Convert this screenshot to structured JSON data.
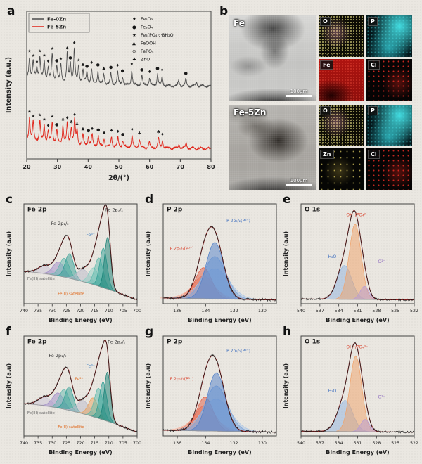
{
  "figure": {
    "bg": "#eae7e1"
  },
  "panels": {
    "a": {
      "label": "a"
    },
    "b": {
      "label": "b"
    },
    "c": {
      "label": "c"
    },
    "d": {
      "label": "d"
    },
    "e": {
      "label": "e"
    },
    "f": {
      "label": "f"
    },
    "g": {
      "label": "g"
    },
    "h": {
      "label": "h"
    }
  },
  "panel_b": {
    "rows": [
      {
        "sem_label": "Fe",
        "scale_label": "100μm",
        "maps": [
          {
            "key": "o",
            "label": "O"
          },
          {
            "key": "p",
            "label": "P"
          },
          {
            "key": "fe",
            "label": "Fe"
          },
          {
            "key": "cl",
            "label": "Cl"
          }
        ]
      },
      {
        "sem_label": "Fe-5Zn",
        "scale_label": "100μm",
        "maps": [
          {
            "key": "o",
            "label": "O"
          },
          {
            "key": "p",
            "label": "P"
          },
          {
            "key": "zn",
            "label": "Zn"
          },
          {
            "key": "cl",
            "label": "Cl"
          }
        ]
      }
    ]
  },
  "chart_data": {
    "a": {
      "type": "line",
      "xlabel": "2θ/(°)",
      "ylabel": "Intensity (a.u.)",
      "xlim": [
        20,
        80
      ],
      "xticks": [
        20,
        30,
        40,
        50,
        60,
        70,
        80
      ],
      "legend": [
        {
          "name": "Fe-0Zn",
          "color": "#4d4d4d"
        },
        {
          "name": "Fe-5Zn",
          "color": "#e02419"
        }
      ],
      "phases": [
        {
          "symbol": "♦",
          "name": "Fe₂O₃"
        },
        {
          "symbol": "●",
          "name": "Fe₃O₄"
        },
        {
          "symbol": "★",
          "name": "Fe₃(PO₄)₂·8H₂O"
        },
        {
          "symbol": "▲",
          "name": "FeOOH"
        },
        {
          "symbol": "⊕",
          "name": "FePO₄"
        },
        {
          "symbol": "♣",
          "name": "ZnO"
        }
      ],
      "series": [
        {
          "name": "Fe-0Zn",
          "color": "#4d4d4d",
          "offset": 0.5,
          "peaks": [
            [
              20.9,
              0.55,
              "★"
            ],
            [
              22.1,
              0.45,
              "★"
            ],
            [
              23.3,
              0.3,
              "♦"
            ],
            [
              24.3,
              0.6,
              "★"
            ],
            [
              25.7,
              0.5,
              "★"
            ],
            [
              27.0,
              0.35,
              "♦"
            ],
            [
              28.3,
              0.7,
              "★"
            ],
            [
              29.8,
              0.4,
              "●"
            ],
            [
              31.1,
              0.45,
              "★"
            ],
            [
              33.2,
              0.75,
              "♦"
            ],
            [
              34.2,
              0.5,
              "●"
            ],
            [
              35.5,
              0.9,
              "♦"
            ],
            [
              36.9,
              0.45,
              "★"
            ],
            [
              38.3,
              0.35,
              "▲"
            ],
            [
              39.6,
              0.3,
              "●"
            ],
            [
              41.1,
              0.4,
              "♦"
            ],
            [
              43.2,
              0.35,
              "●"
            ],
            [
              45.1,
              0.28,
              "▲"
            ],
            [
              47.4,
              0.3,
              "●"
            ],
            [
              49.6,
              0.35,
              "♦"
            ],
            [
              51.2,
              0.22,
              "●"
            ],
            [
              54.2,
              0.4,
              "♦"
            ],
            [
              57.5,
              0.26,
              "●"
            ],
            [
              60.0,
              0.2,
              "♦"
            ],
            [
              62.6,
              0.3,
              "●"
            ],
            [
              64.1,
              0.25,
              "♦"
            ],
            [
              69.5,
              0.15,
              null
            ],
            [
              71.8,
              0.18,
              "●"
            ],
            [
              75.3,
              0.12,
              null
            ]
          ]
        },
        {
          "name": "Fe-5Zn",
          "color": "#e02419",
          "offset": 0.07,
          "peaks": [
            [
              20.9,
              0.6,
              "★"
            ],
            [
              22.1,
              0.5,
              "★"
            ],
            [
              24.3,
              0.55,
              "★"
            ],
            [
              25.7,
              0.45,
              "★"
            ],
            [
              27.0,
              0.3,
              "♦"
            ],
            [
              28.3,
              0.55,
              "★"
            ],
            [
              29.8,
              0.35,
              "●"
            ],
            [
              31.8,
              0.5,
              "♣"
            ],
            [
              33.2,
              0.55,
              "♦"
            ],
            [
              34.5,
              0.45,
              "♣"
            ],
            [
              35.6,
              0.65,
              "♦"
            ],
            [
              36.4,
              0.4,
              "♣"
            ],
            [
              38.3,
              0.3,
              "▲"
            ],
            [
              40.1,
              0.25,
              "●"
            ],
            [
              41.3,
              0.3,
              "♦"
            ],
            [
              43.3,
              0.28,
              "●"
            ],
            [
              45.2,
              0.22,
              "▲"
            ],
            [
              47.6,
              0.28,
              "♣"
            ],
            [
              49.7,
              0.25,
              "♦"
            ],
            [
              51.3,
              0.18,
              "●"
            ],
            [
              54.3,
              0.32,
              "♦"
            ],
            [
              56.7,
              0.22,
              "♣"
            ],
            [
              59.9,
              0.16,
              null
            ],
            [
              62.9,
              0.26,
              "♣"
            ],
            [
              64.2,
              0.2,
              "♦"
            ],
            [
              69.6,
              0.12,
              null
            ],
            [
              71.9,
              0.14,
              null
            ]
          ]
        }
      ]
    },
    "c": {
      "type": "area",
      "title": "Fe 2p",
      "xlabel": "Binding Energy (eV)",
      "ylabel": "Intensity (a.u)",
      "xlim": [
        740,
        700
      ],
      "xticks": [
        740,
        735,
        730,
        725,
        720,
        715,
        710,
        705,
        700
      ],
      "baseline": {
        "left": 0.34,
        "right": 0.04,
        "curve": 1.6
      },
      "noise": 0.012,
      "envelope_color": "#8c1f1f",
      "components": [
        {
          "center": 732.6,
          "width": 2.4,
          "amp": 0.08,
          "color": "#c9c3d6"
        },
        {
          "center": 727.7,
          "width": 2.0,
          "amp": 0.15,
          "color": "#a08cc8"
        },
        {
          "center": 725.7,
          "width": 1.7,
          "amp": 0.2,
          "color": "#63b8ae"
        },
        {
          "center": 723.9,
          "width": 1.5,
          "amp": 0.26,
          "color": "#2f9e94"
        },
        {
          "center": 718.9,
          "width": 2.2,
          "amp": 0.13,
          "color": "#b9b9c9"
        },
        {
          "center": 715.3,
          "width": 1.7,
          "amp": 0.18,
          "color": "#8fd0c4"
        },
        {
          "center": 713.5,
          "width": 1.5,
          "amp": 0.3,
          "color": "#5cb9ac"
        },
        {
          "center": 711.9,
          "width": 1.3,
          "amp": 0.42,
          "color": "#2f9e94"
        },
        {
          "center": 710.4,
          "width": 1.1,
          "amp": 0.55,
          "color": "#167f74"
        }
      ],
      "annotations": [
        {
          "text": "Fe 2p",
          "fx": 0.03,
          "fy": 0.03,
          "color": "#1a1a1a",
          "size": 9,
          "bold": true
        },
        {
          "text": "Fe 2p₁/₂",
          "fx": 0.24,
          "fy": 0.17,
          "color": "#333333",
          "size": 6.5
        },
        {
          "text": "Fe 2p₃/₂",
          "fx": 0.72,
          "fy": 0.03,
          "color": "#333333",
          "size": 6.5
        },
        {
          "text": "Fe³⁺",
          "fx": 0.55,
          "fy": 0.28,
          "color": "#3f7fc1",
          "size": 6
        },
        {
          "text": "Fe(III) satellite",
          "fx": 0.03,
          "fy": 0.72,
          "color": "#6a6a6a",
          "size": 5.5
        },
        {
          "text": "Fe(II) satellite",
          "fx": 0.3,
          "fy": 0.87,
          "color": "#e06a1f",
          "size": 5.5
        }
      ]
    },
    "d": {
      "type": "area",
      "title": "P 2p",
      "xlabel": "Binding Energy (eV)",
      "ylabel": "Intensity (a.u)",
      "xlim": [
        137,
        129
      ],
      "xticks": [
        136,
        134,
        132,
        130
      ],
      "baseline": {
        "left": 0.06,
        "right": 0.04,
        "curve": 1
      },
      "noise": 0.014,
      "envelope_color": "#8c1f1f",
      "components": [
        {
          "center": 134.15,
          "width": 0.95,
          "amp": 0.16,
          "color": "#f6b4a0",
          "sum": false
        },
        {
          "center": 134.15,
          "width": 0.75,
          "amp": 0.24,
          "color": "#ee8a70",
          "sum": false
        },
        {
          "center": 134.15,
          "width": 0.58,
          "amp": 0.33,
          "color": "#e05a42",
          "sum": true
        },
        {
          "center": 133.35,
          "width": 1.0,
          "amp": 0.32,
          "color": "#aac6e8",
          "sum": false
        },
        {
          "center": 133.35,
          "width": 0.8,
          "amp": 0.45,
          "color": "#7fa6da",
          "sum": false
        },
        {
          "center": 133.35,
          "width": 0.62,
          "amp": 0.6,
          "color": "#4f7fc9",
          "sum": true
        }
      ],
      "annotations": [
        {
          "text": "P 2p",
          "fx": 0.03,
          "fy": 0.03,
          "color": "#1a1a1a",
          "size": 9,
          "bold": true
        },
        {
          "text": "P 2p₃/₂(P⁵⁺)",
          "fx": 0.56,
          "fy": 0.14,
          "color": "#3f6fbf",
          "size": 6
        },
        {
          "text": "P 2p₁/₂(P⁵⁺)",
          "fx": 0.06,
          "fy": 0.42,
          "color": "#d9432e",
          "size": 6
        }
      ]
    },
    "e": {
      "type": "area",
      "title": "O 1s",
      "xlabel": "Binding Energy (eV)",
      "ylabel": "Intensity (a.u)",
      "xlim": [
        540,
        522
      ],
      "xticks": [
        540,
        537,
        534,
        531,
        528,
        525,
        522
      ],
      "baseline": {
        "left": 0.05,
        "right": 0.04,
        "curve": 1
      },
      "noise": 0.011,
      "envelope_color": "#8c1f1f",
      "components": [
        {
          "center": 533.1,
          "width": 1.15,
          "amp": 0.36,
          "color": "#8fb3e0"
        },
        {
          "center": 531.4,
          "width": 0.95,
          "amp": 0.8,
          "color": "#f0a168"
        },
        {
          "center": 529.9,
          "width": 0.7,
          "amp": 0.14,
          "color": "#b79bd4"
        }
      ],
      "annotations": [
        {
          "text": "O 1s",
          "fx": 0.03,
          "fy": 0.03,
          "color": "#1a1a1a",
          "size": 9,
          "bold": true
        },
        {
          "text": "OH⁻/PO₄³⁻",
          "fx": 0.4,
          "fy": 0.08,
          "color": "#d9432e",
          "size": 6
        },
        {
          "text": "H₂O",
          "fx": 0.24,
          "fy": 0.5,
          "color": "#3f6fbf",
          "size": 6
        },
        {
          "text": "O²⁻",
          "fx": 0.68,
          "fy": 0.55,
          "color": "#8e6bbf",
          "size": 6
        }
      ]
    },
    "f": {
      "type": "area",
      "title": "Fe 2p",
      "xlabel": "Binding Energy (eV)",
      "ylabel": "Intensity (a.u)",
      "xlim": [
        740,
        700
      ],
      "xticks": [
        740,
        735,
        730,
        725,
        720,
        715,
        710,
        705,
        700
      ],
      "baseline": {
        "left": 0.34,
        "right": 0.04,
        "curve": 1.6
      },
      "noise": 0.012,
      "envelope_color": "#8c1f1f",
      "components": [
        {
          "center": 732.6,
          "width": 2.4,
          "amp": 0.09,
          "color": "#c9c3d6"
        },
        {
          "center": 727.9,
          "width": 2.0,
          "amp": 0.16,
          "color": "#a08cc8"
        },
        {
          "center": 725.8,
          "width": 1.7,
          "amp": 0.21,
          "color": "#63b8ae"
        },
        {
          "center": 724.0,
          "width": 1.5,
          "amp": 0.25,
          "color": "#2f9e94"
        },
        {
          "center": 719.0,
          "width": 2.2,
          "amp": 0.14,
          "color": "#b9b9c9"
        },
        {
          "center": 715.5,
          "width": 1.7,
          "amp": 0.2,
          "color": "#e8a25e"
        },
        {
          "center": 713.6,
          "width": 1.5,
          "amp": 0.32,
          "color": "#5cb9ac"
        },
        {
          "center": 712.0,
          "width": 1.3,
          "amp": 0.4,
          "color": "#2f9e94"
        },
        {
          "center": 710.5,
          "width": 1.1,
          "amp": 0.52,
          "color": "#167f74"
        }
      ],
      "annotations": [
        {
          "text": "Fe 2p",
          "fx": 0.03,
          "fy": 0.03,
          "color": "#1a1a1a",
          "size": 9,
          "bold": true
        },
        {
          "text": "Fe 2p₁/₂",
          "fx": 0.22,
          "fy": 0.17,
          "color": "#333333",
          "size": 6.5
        },
        {
          "text": "Fe 2p₃/₂",
          "fx": 0.74,
          "fy": 0.03,
          "color": "#333333",
          "size": 6.5
        },
        {
          "text": "Fe³⁺",
          "fx": 0.55,
          "fy": 0.27,
          "color": "#3f7fc1",
          "size": 6
        },
        {
          "text": "Fe²⁺",
          "fx": 0.45,
          "fy": 0.4,
          "color": "#e07b39",
          "size": 6
        },
        {
          "text": "Fe(III) satellite",
          "fx": 0.03,
          "fy": 0.74,
          "color": "#6a6a6a",
          "size": 5.5
        },
        {
          "text": "Fe(II) satellite",
          "fx": 0.3,
          "fy": 0.88,
          "color": "#e06a1f",
          "size": 5.5
        }
      ]
    },
    "g": {
      "type": "area",
      "title": "P 2p",
      "xlabel": "Binding Energy (eV)",
      "ylabel": "Intensity (a.u)",
      "xlim": [
        137,
        129
      ],
      "xticks": [
        136,
        134,
        132,
        130
      ],
      "baseline": {
        "left": 0.06,
        "right": 0.04,
        "curve": 1
      },
      "noise": 0.014,
      "envelope_color": "#8c1f1f",
      "components": [
        {
          "center": 134.05,
          "width": 0.95,
          "amp": 0.18,
          "color": "#f6b4a0",
          "sum": false
        },
        {
          "center": 134.05,
          "width": 0.75,
          "amp": 0.27,
          "color": "#ee8a70",
          "sum": false
        },
        {
          "center": 134.05,
          "width": 0.58,
          "amp": 0.36,
          "color": "#e05a42",
          "sum": true
        },
        {
          "center": 133.25,
          "width": 1.0,
          "amp": 0.34,
          "color": "#aac6e8",
          "sum": false
        },
        {
          "center": 133.25,
          "width": 0.8,
          "amp": 0.48,
          "color": "#7fa6da",
          "sum": false
        },
        {
          "center": 133.25,
          "width": 0.62,
          "amp": 0.62,
          "color": "#4f7fc9",
          "sum": true
        }
      ],
      "annotations": [
        {
          "text": "P 2p",
          "fx": 0.03,
          "fy": 0.03,
          "color": "#1a1a1a",
          "size": 9,
          "bold": true
        },
        {
          "text": "P 2p₃/₂(P⁵⁺)",
          "fx": 0.56,
          "fy": 0.12,
          "color": "#3f6fbf",
          "size": 6
        },
        {
          "text": "P 2p₁/₂(P⁵⁺)",
          "fx": 0.06,
          "fy": 0.4,
          "color": "#d9432e",
          "size": 6
        }
      ]
    },
    "h": {
      "type": "area",
      "title": "O 1s",
      "xlabel": "Binding Energy (eV)",
      "ylabel": "Intensity (a.u)",
      "xlim": [
        540,
        522
      ],
      "xticks": [
        540,
        537,
        534,
        531,
        528,
        525,
        522
      ],
      "baseline": {
        "left": 0.05,
        "right": 0.04,
        "curve": 1
      },
      "noise": 0.011,
      "envelope_color": "#8c1f1f",
      "components": [
        {
          "center": 533.0,
          "width": 1.2,
          "amp": 0.33,
          "color": "#8fb3e0"
        },
        {
          "center": 531.3,
          "width": 0.95,
          "amp": 0.8,
          "color": "#f0a168"
        },
        {
          "center": 529.8,
          "width": 0.7,
          "amp": 0.13,
          "color": "#b79bd4"
        }
      ],
      "annotations": [
        {
          "text": "O 1s",
          "fx": 0.03,
          "fy": 0.03,
          "color": "#1a1a1a",
          "size": 9,
          "bold": true
        },
        {
          "text": "OH⁻/PO₄³⁻",
          "fx": 0.4,
          "fy": 0.08,
          "color": "#d9432e",
          "size": 6
        },
        {
          "text": "H₂O",
          "fx": 0.24,
          "fy": 0.52,
          "color": "#3f6fbf",
          "size": 6
        },
        {
          "text": "O²⁻",
          "fx": 0.68,
          "fy": 0.58,
          "color": "#8e6bbf",
          "size": 6
        }
      ]
    }
  }
}
